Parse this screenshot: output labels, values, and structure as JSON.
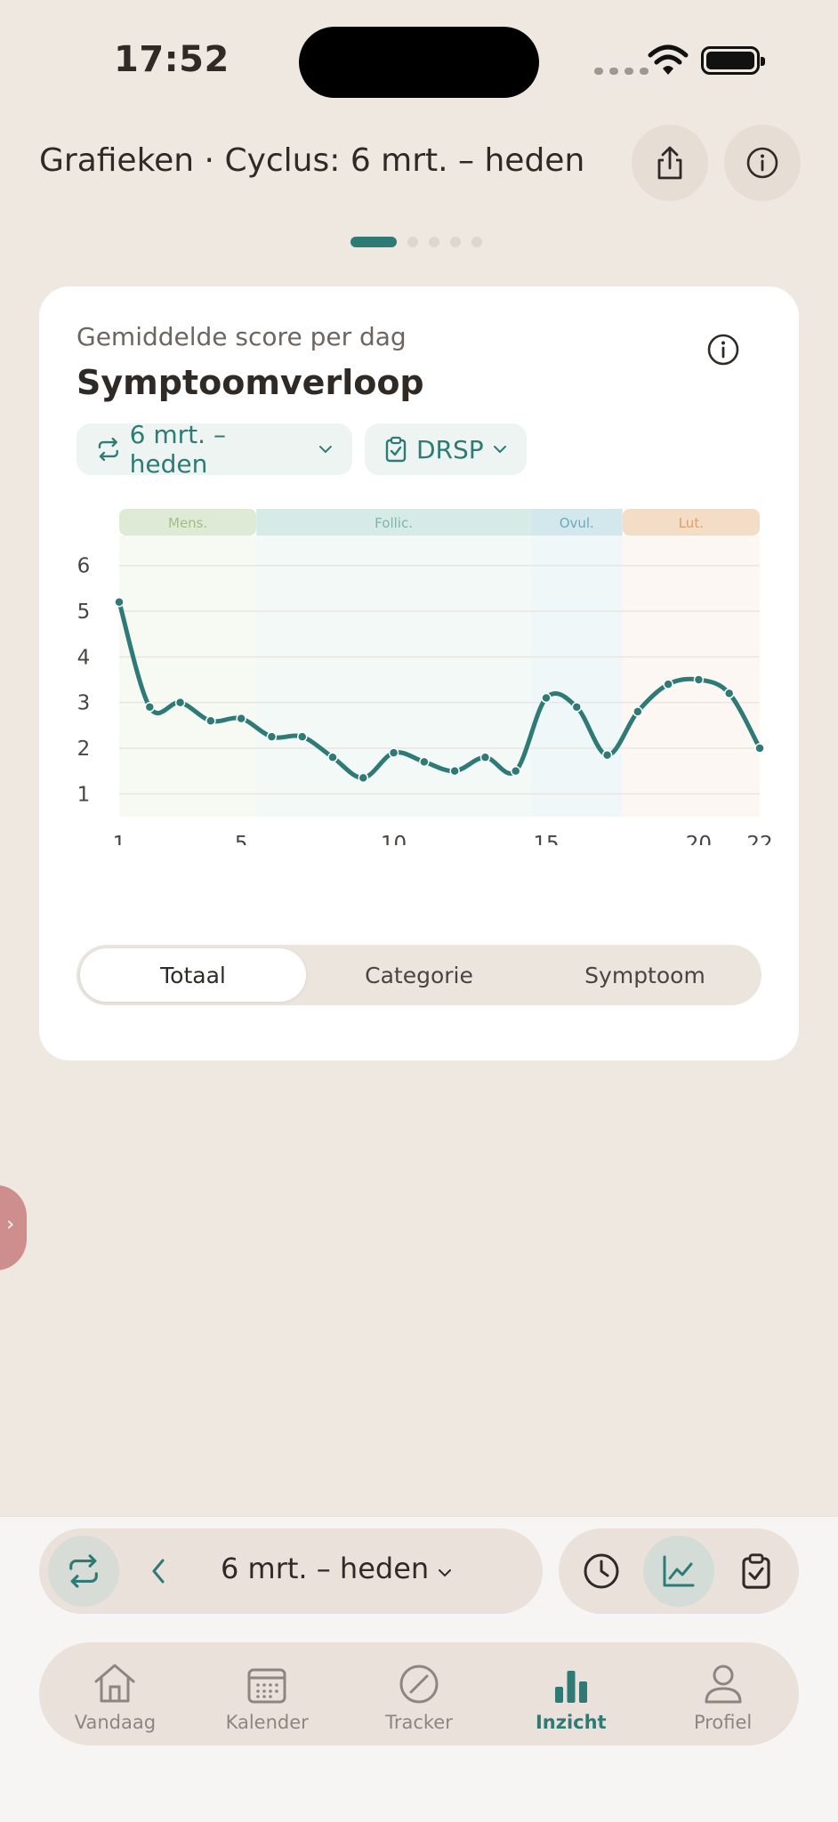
{
  "status_bar": {
    "time": "17:52"
  },
  "header": {
    "title": "Grafieken · Cyclus: 6 mrt. – heden",
    "share_icon": "share-icon",
    "info_icon": "info-icon",
    "pager": {
      "count": 5,
      "active": 0
    }
  },
  "card": {
    "subtitle": "Gemiddelde score per dag",
    "title": "Symptoomverloop",
    "filters": [
      {
        "label": "6 mrt. – heden",
        "icon": "repeat-icon"
      },
      {
        "label": "DRSP",
        "icon": "clipboard-check-icon"
      }
    ],
    "segments": [
      {
        "label": "Totaal",
        "active": true
      },
      {
        "label": "Categorie",
        "active": false
      },
      {
        "label": "Symptoom",
        "active": false
      }
    ]
  },
  "chart_data": {
    "type": "line",
    "x": [
      1,
      2,
      3,
      4,
      5,
      6,
      7,
      8,
      9,
      10,
      11,
      12,
      13,
      14,
      15,
      16,
      17,
      18,
      19,
      20,
      21,
      22
    ],
    "series": [
      {
        "values": [
          5.2,
          2.9,
          3.0,
          2.6,
          2.65,
          2.25,
          2.25,
          1.8,
          1.35,
          1.9,
          1.7,
          1.5,
          1.8,
          1.5,
          3.1,
          2.9,
          1.85,
          2.8,
          3.4,
          3.5,
          3.2,
          2.0
        ]
      }
    ],
    "xticks": [
      "1",
      "5",
      "10",
      "15",
      "20",
      "22"
    ],
    "yticks": [
      "1",
      "2",
      "3",
      "4",
      "5",
      "6"
    ],
    "ylim": [
      0.5,
      6.5
    ],
    "xlim": [
      1,
      22
    ],
    "grid": true,
    "color": "#2d7a76",
    "phases": [
      {
        "label": "Mens.",
        "start": 1,
        "end": 5.5,
        "band": "#dfead6",
        "bg": "#f6faf2",
        "text": "#9dbf87"
      },
      {
        "label": "Follic.",
        "start": 5.5,
        "end": 14.5,
        "band": "#d6ebe6",
        "bg": "#f2f9f7",
        "text": "#7fb3a9"
      },
      {
        "label": "Ovul.",
        "start": 14.5,
        "end": 17.5,
        "band": "#d2e8ec",
        "bg": "#eff7f9",
        "text": "#6fa9b9"
      },
      {
        "label": "Lut.",
        "start": 17.5,
        "end": 22,
        "band": "#f3ddc7",
        "bg": "#fdf7f3",
        "text": "#d9a16e"
      }
    ],
    "period_days": [
      1,
      2,
      3,
      4
    ],
    "ovulation_day": 16
  },
  "bottom": {
    "range_label": "6 mrt. – heden",
    "view_buttons": [
      "clock-icon",
      "line-chart-icon",
      "clipboard-check-icon"
    ]
  },
  "tabbar": [
    {
      "label": "Vandaag",
      "icon": "home-icon",
      "active": false
    },
    {
      "label": "Kalender",
      "icon": "calendar-icon",
      "active": false
    },
    {
      "label": "Tracker",
      "icon": "tracker-icon",
      "active": false
    },
    {
      "label": "Inzicht",
      "icon": "bar-chart-icon",
      "active": true
    },
    {
      "label": "Profiel",
      "icon": "person-icon",
      "active": false
    }
  ]
}
